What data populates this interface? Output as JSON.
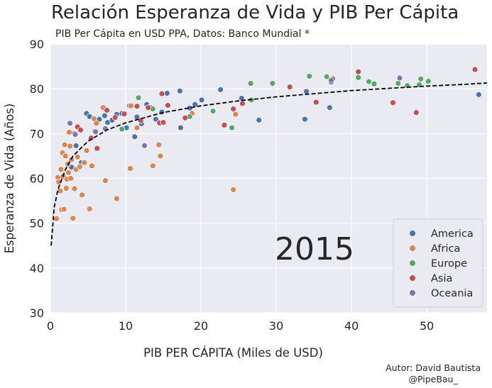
{
  "title": "Relación Esperanza de Vida y PIB Per Cápita",
  "subtitle": "PIB Per Cápita en USD PPA, Datos: Banco Mundial *",
  "credit": {
    "line1": "Autor: David Bautista",
    "line2": "@PipeBau_"
  },
  "colors": {
    "background": "#EAEAF2",
    "grid": "#FFFFFF",
    "trend": "#000000",
    "America": "#4C72B0",
    "Africa": "#DD8452",
    "Europe": "#55A868",
    "Asia": "#C44E52",
    "Oceania": "#8172B3"
  },
  "chart_data": {
    "type": "scatter",
    "title": "Relación Esperanza de Vida y PIB Per Cápita",
    "xlabel": "PIB PER CÁPITA (Miles de USD)",
    "ylabel": "Esperanza de Vida (Años)",
    "annotation": "2015",
    "xlim": [
      0,
      58
    ],
    "ylim": [
      30,
      90
    ],
    "x_ticks": [
      0,
      10,
      20,
      30,
      40,
      50
    ],
    "y_ticks": [
      30,
      40,
      50,
      60,
      70,
      80,
      90
    ],
    "grid": true,
    "legend_position": "bottom-right",
    "legend": [
      "America",
      "Africa",
      "Europe",
      "Asia",
      "Oceania"
    ],
    "trend_line": {
      "style": "dashed",
      "x": [
        0.1,
        0.5,
        1,
        2,
        3,
        5,
        7.5,
        10,
        15,
        20,
        25,
        30,
        35,
        40,
        45,
        50,
        55,
        58
      ],
      "y": [
        45,
        53.5,
        57.5,
        62,
        65,
        68.3,
        70.8,
        72.4,
        74.7,
        76.2,
        77.3,
        78.2,
        78.9,
        79.6,
        80.1,
        80.6,
        81,
        81.3
      ]
    },
    "series": [
      {
        "name": "America",
        "x": [
          2.8,
          3.4,
          4.1,
          4.8,
          5.2,
          5.9,
          6.5,
          7.2,
          7.6,
          8.2,
          8.8,
          9.5,
          10.1,
          10.5,
          11.2,
          11.5,
          12.1,
          12.8,
          13.3,
          14,
          14.8,
          15.5,
          17.2,
          17.3,
          18.5,
          19.2,
          20.1,
          22.6,
          25.4,
          27.7,
          33.8,
          34,
          37.1,
          37.3,
          56.9
        ],
        "y": [
          62.5,
          67.3,
          63.5,
          74.5,
          73.8,
          70.5,
          73.2,
          74,
          72.5,
          73,
          74.3,
          74.5,
          71.3,
          76.2,
          69.3,
          73.7,
          72.2,
          76.5,
          75.8,
          73.2,
          74.8,
          79,
          79.5,
          71.3,
          75.7,
          76.5,
          77.5,
          79.8,
          77.9,
          73,
          73.2,
          79.4,
          75.8,
          81.5,
          78.7
        ]
      },
      {
        "name": "Africa",
        "x": [
          0.8,
          1,
          1.1,
          1.3,
          1.4,
          1.5,
          1.6,
          1.7,
          1.8,
          1.9,
          2,
          2.1,
          2.2,
          2.3,
          2.4,
          2.5,
          2.6,
          2.7,
          2.8,
          3,
          3.2,
          3.4,
          3.6,
          3.9,
          4.2,
          4.5,
          4.8,
          5.2,
          5.5,
          5.8,
          6.1,
          7,
          7.3,
          8.8,
          10.6,
          10.7,
          11.5,
          13.6,
          14.4,
          14.6,
          18.8,
          24.3,
          24.6
        ],
        "y": [
          51,
          60.2,
          59.2,
          57.2,
          62,
          53,
          65.7,
          60.5,
          53.1,
          67.5,
          65,
          57.8,
          59.8,
          63.2,
          61.3,
          70.3,
          67.2,
          60,
          64.2,
          51.1,
          57.7,
          62,
          64.8,
          62.6,
          56.3,
          63.5,
          66.2,
          53.2,
          62.8,
          73.3,
          72.3,
          75.8,
          59.5,
          55.5,
          62.2,
          76.2,
          71.3,
          62.8,
          67.5,
          65,
          74.5,
          57.5,
          74.3
        ]
      },
      {
        "name": "Europe",
        "x": [
          9.5,
          11.7,
          13.6,
          18.5,
          21.6,
          24.1,
          26.6,
          26.7,
          29.5,
          34.4,
          36.7,
          37.4,
          40.9,
          42.3,
          43,
          46.2,
          47.4,
          49,
          49.2,
          50.2
        ],
        "y": [
          71,
          78,
          75.5,
          73.8,
          75,
          71.3,
          81.2,
          77.5,
          81.2,
          82.8,
          82.7,
          82.2,
          82.5,
          81.6,
          81.1,
          81.2,
          80.7,
          80.9,
          82.2,
          81.7
        ]
      },
      {
        "name": "Asia",
        "x": [
          3.2,
          3.6,
          4,
          5.4,
          6.2,
          7.5,
          8.6,
          9.8,
          11.5,
          12,
          13,
          14.5,
          14.8,
          15,
          15.6,
          17.9,
          23.1,
          24.3,
          25.5,
          31.8,
          35.3,
          37.5,
          40.9,
          45.5,
          48.6,
          56.4
        ],
        "y": [
          70,
          71.5,
          70.8,
          69,
          66.7,
          75.2,
          73.6,
          74.4,
          76.1,
          72.9,
          75.8,
          72.4,
          78.9,
          72.5,
          76.3,
          73.5,
          71.9,
          75.5,
          76.7,
          80.4,
          77,
          82.2,
          83.8,
          76.9,
          74.7,
          84.3
        ]
      },
      {
        "name": "Oceania",
        "x": [
          2.6,
          3.3,
          6,
          7.3,
          12.5,
          37.3,
          46.4
        ],
        "y": [
          72.3,
          69.8,
          70.4,
          71.1,
          67.3,
          81.9,
          82.4
        ]
      }
    ]
  }
}
